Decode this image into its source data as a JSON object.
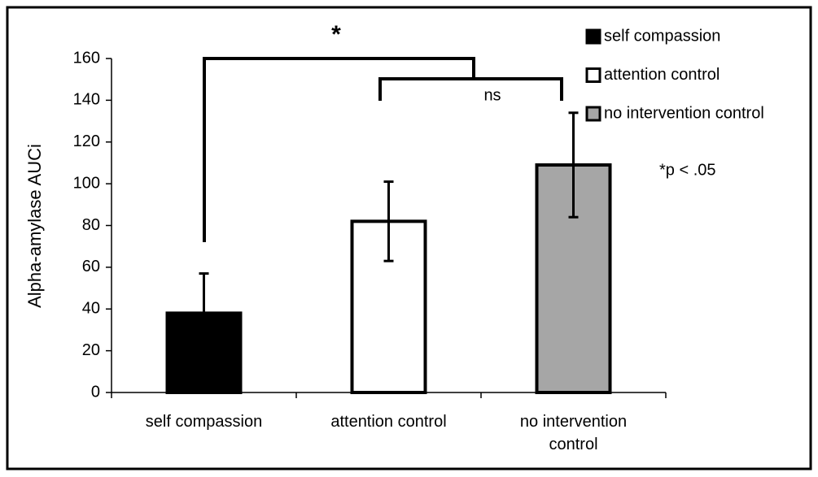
{
  "chart_data": {
    "type": "bar",
    "ylabel": "Alpha-amylase AUCi",
    "categories": [
      "self compassion",
      "attention control",
      "no intervention control"
    ],
    "series": [
      {
        "name": "self compassion",
        "color": "#000000"
      },
      {
        "name": "attention control",
        "color": "#ffffff"
      },
      {
        "name": "no intervention control",
        "color": "#a6a6a6"
      }
    ],
    "values": [
      38,
      82,
      109
    ],
    "errors": [
      19,
      19,
      25
    ],
    "ylim": [
      0,
      160
    ],
    "yticks": [
      0,
      20,
      40,
      60,
      80,
      100,
      120,
      140,
      160
    ],
    "legend": "top-right",
    "annotations": [
      "*",
      "ns",
      "*p < .05"
    ]
  }
}
